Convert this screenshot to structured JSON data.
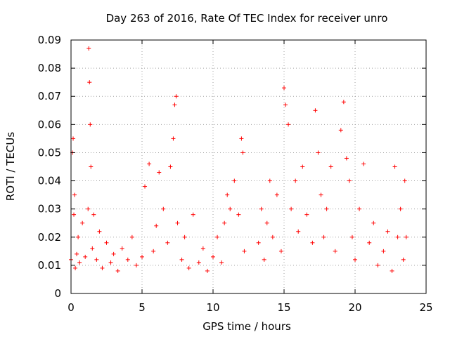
{
  "chart_data": {
    "type": "scatter",
    "title": "Day 263 of 2016, Rate Of TEC Index for receiver unro",
    "xlabel": "GPS time / hours",
    "ylabel": "ROTI / TECUs",
    "xlim": [
      0,
      25
    ],
    "ylim": [
      0,
      0.09
    ],
    "grid": true,
    "marker": "+",
    "marker_color": "#ff0000",
    "x_ticks": [
      0,
      5,
      10,
      15,
      20,
      25
    ],
    "x_tick_labels": [
      "0",
      "5",
      "10",
      "15",
      "20",
      "25"
    ],
    "y_ticks": [
      0,
      0.01,
      0.02,
      0.03,
      0.04,
      0.05,
      0.06,
      0.07,
      0.08,
      0.09
    ],
    "y_tick_labels": [
      "0",
      "0.01",
      "0.02",
      "0.03",
      "0.04",
      "0.05",
      "0.06",
      "0.07",
      "0.08",
      "0.09"
    ],
    "data_gap_hours": [
      12.25,
      13.2
    ],
    "series": [
      {
        "name": "ROTI",
        "x": [
          0.0,
          0.1,
          0.15,
          0.2,
          0.25,
          0.3,
          0.4,
          0.5,
          0.6,
          0.8,
          1.0,
          1.2,
          1.25,
          1.3,
          1.35,
          1.4,
          1.5,
          1.6,
          1.8,
          2.0,
          2.2,
          2.5,
          2.8,
          3.0,
          3.3,
          3.6,
          4.0,
          4.3,
          4.6,
          5.0,
          5.2,
          5.5,
          5.8,
          6.0,
          6.2,
          6.5,
          6.8,
          7.0,
          7.2,
          7.3,
          7.4,
          7.5,
          7.8,
          8.0,
          8.3,
          8.6,
          9.0,
          9.3,
          9.6,
          10.0,
          10.3,
          10.6,
          10.8,
          11.0,
          11.2,
          11.5,
          11.8,
          12.0,
          12.1,
          12.2,
          13.2,
          13.4,
          13.6,
          13.8,
          14.0,
          14.2,
          14.5,
          14.8,
          15.0,
          15.1,
          15.3,
          15.5,
          15.8,
          16.0,
          16.3,
          16.6,
          17.0,
          17.2,
          17.4,
          17.6,
          17.8,
          18.0,
          18.3,
          18.6,
          19.0,
          19.2,
          19.4,
          19.6,
          19.8,
          20.0,
          20.3,
          20.6,
          21.0,
          21.3,
          21.6,
          22.0,
          22.3,
          22.6,
          22.8,
          23.0,
          23.2,
          23.4,
          23.5,
          23.6
        ],
        "y": [
          0.012,
          0.05,
          0.055,
          0.028,
          0.035,
          0.009,
          0.014,
          0.02,
          0.011,
          0.025,
          0.013,
          0.03,
          0.087,
          0.075,
          0.06,
          0.045,
          0.016,
          0.028,
          0.012,
          0.022,
          0.009,
          0.018,
          0.011,
          0.014,
          0.008,
          0.016,
          0.012,
          0.02,
          0.01,
          0.013,
          0.038,
          0.046,
          0.015,
          0.024,
          0.043,
          0.03,
          0.018,
          0.045,
          0.055,
          0.067,
          0.07,
          0.025,
          0.012,
          0.02,
          0.009,
          0.028,
          0.011,
          0.016,
          0.008,
          0.013,
          0.02,
          0.011,
          0.025,
          0.035,
          0.03,
          0.04,
          0.028,
          0.055,
          0.05,
          0.015,
          0.018,
          0.03,
          0.012,
          0.025,
          0.04,
          0.02,
          0.035,
          0.015,
          0.073,
          0.067,
          0.06,
          0.03,
          0.04,
          0.022,
          0.045,
          0.028,
          0.018,
          0.065,
          0.05,
          0.035,
          0.02,
          0.03,
          0.045,
          0.015,
          0.058,
          0.068,
          0.048,
          0.04,
          0.02,
          0.012,
          0.03,
          0.046,
          0.018,
          0.025,
          0.01,
          0.015,
          0.022,
          0.008,
          0.045,
          0.02,
          0.03,
          0.012,
          0.04,
          0.02
        ]
      }
    ]
  }
}
